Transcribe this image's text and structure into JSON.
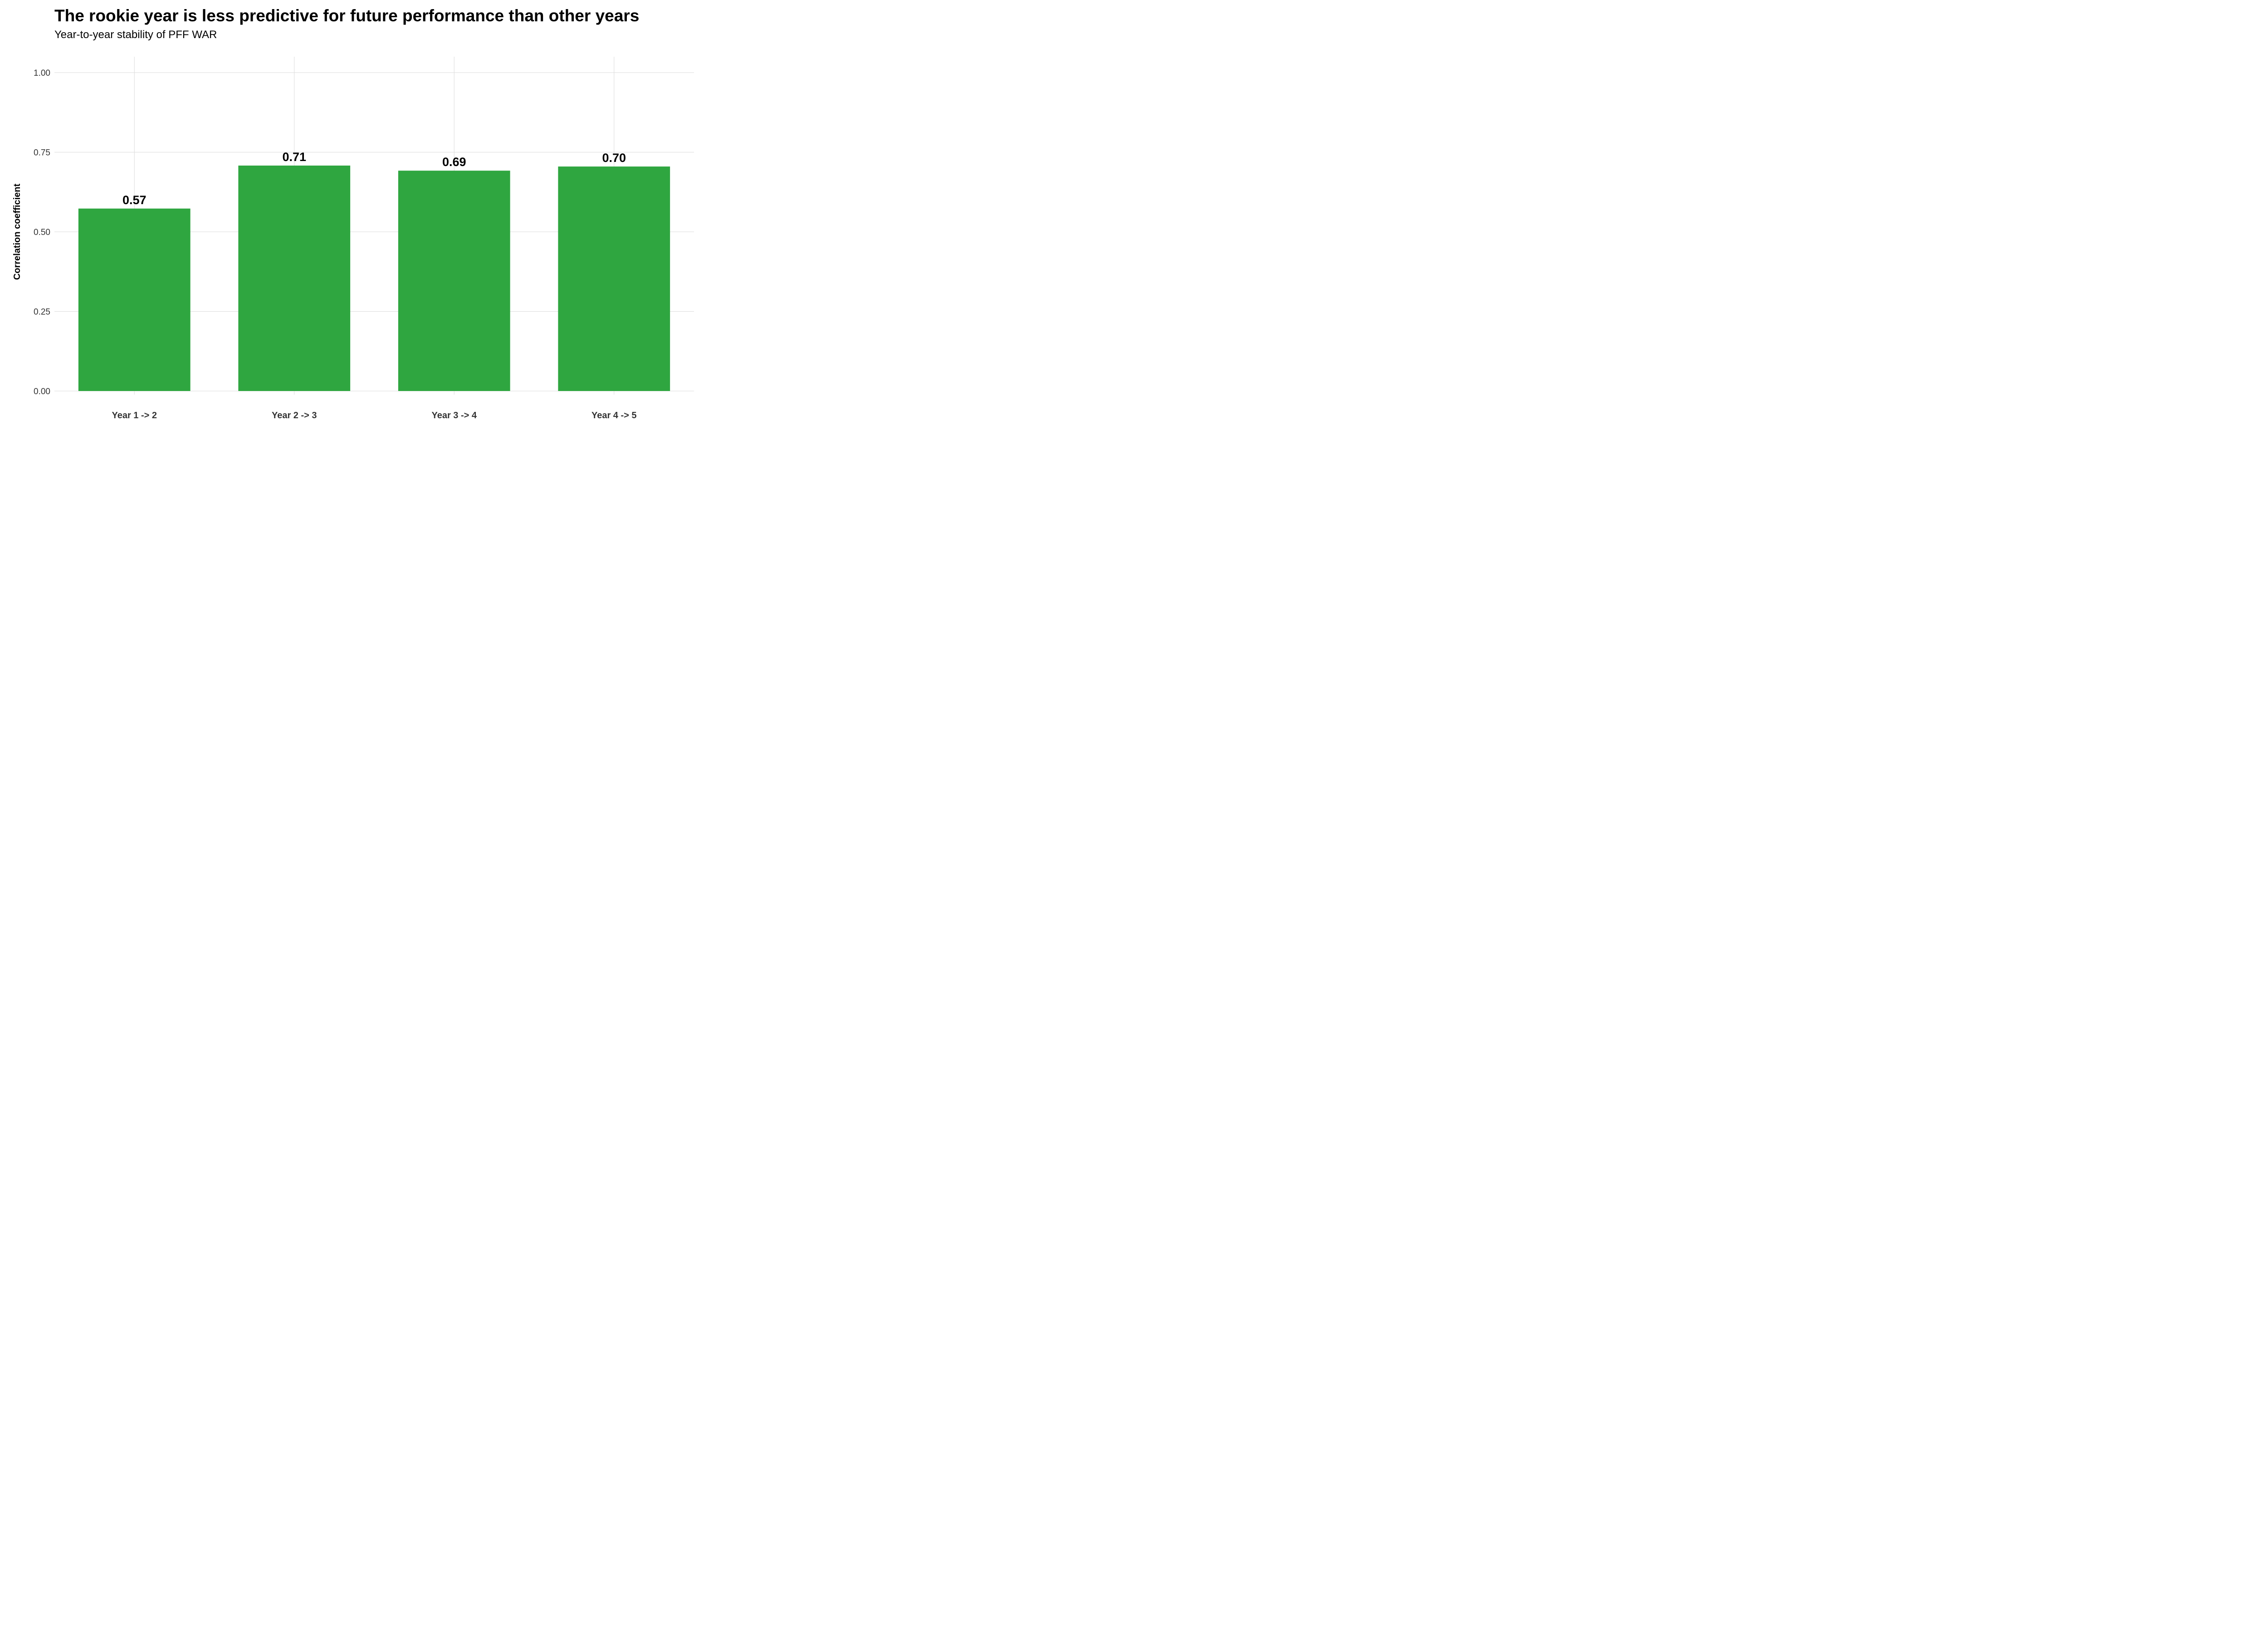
{
  "chart_data": {
    "type": "bar",
    "title": "The rookie year is less predictive for future performance than other years",
    "subtitle": "Year-to-year stability of PFF WAR",
    "xlabel": "",
    "ylabel": "Correlation coefficient",
    "categories": [
      "Year 1 -> 2",
      "Year 2 -> 3",
      "Year 3 -> 4",
      "Year 4 -> 5"
    ],
    "values": [
      0.573,
      0.708,
      0.692,
      0.705
    ],
    "value_labels": [
      "0.57",
      "0.71",
      "0.69",
      "0.70"
    ],
    "ylim": [
      0,
      1.05
    ],
    "yticks": [
      0.0,
      0.25,
      0.5,
      0.75,
      1.0
    ],
    "ytick_labels": [
      "0.00",
      "0.25",
      "0.50",
      "0.75",
      "1.00"
    ],
    "grid": true,
    "legend": "none",
    "bar_color": "#2fa640",
    "grid_color": "#dcdcdc"
  }
}
